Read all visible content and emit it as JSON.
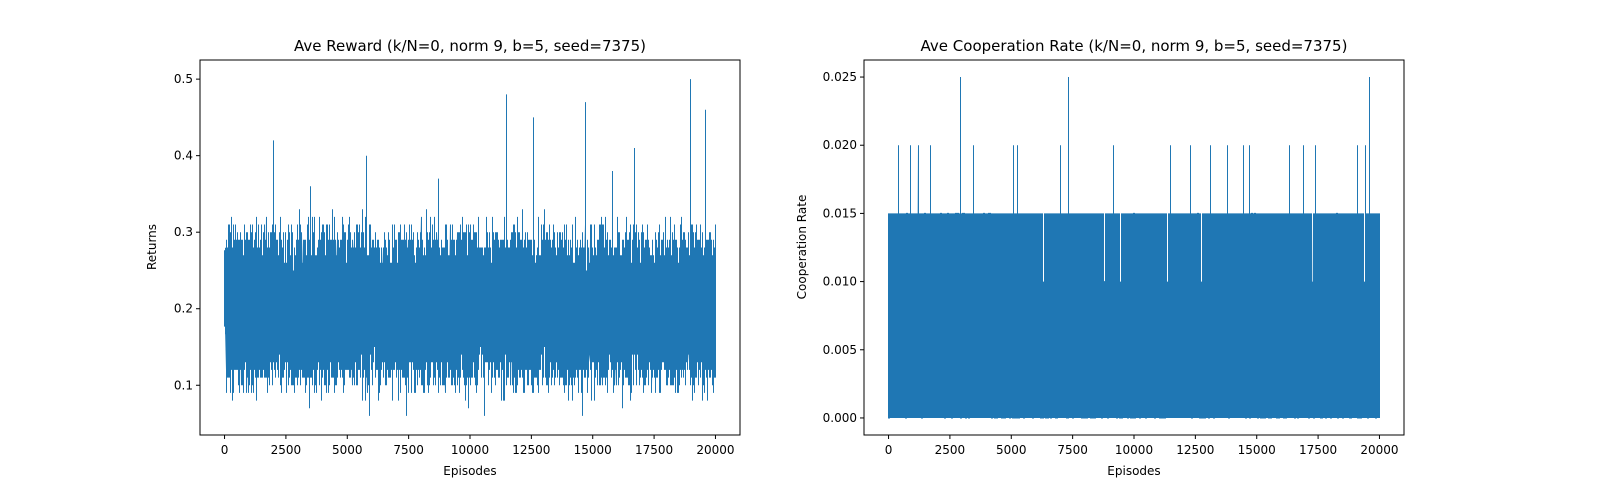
{
  "chart_data": [
    {
      "type": "line",
      "title": "Ave Reward (k/N=0, norm 9, b=5, seed=7375)",
      "xlabel": "Episodes",
      "ylabel": "Returns",
      "xlim": [
        -1000,
        21000
      ],
      "ylim": [
        0.035,
        0.525
      ],
      "xticks": [
        0,
        2500,
        5000,
        7500,
        10000,
        12500,
        15000,
        17500,
        20000
      ],
      "yticks": [
        0.1,
        0.2,
        0.3,
        0.4,
        0.5
      ],
      "ytick_decimals": 1,
      "grid": false,
      "color": "#1f77b4",
      "series": [
        {
          "generator": {
            "n": 20000,
            "seed": 7375,
            "base": 0.2,
            "amp": 0.09,
            "step": 0.01,
            "min": 0.06,
            "max": 0.5
          },
          "spikes": [
            {
              "x": 2000,
              "y": 0.42
            },
            {
              "x": 5800,
              "y": 0.4
            },
            {
              "x": 11500,
              "y": 0.48
            },
            {
              "x": 12600,
              "y": 0.45
            },
            {
              "x": 14700,
              "y": 0.47
            },
            {
              "x": 16700,
              "y": 0.41
            },
            {
              "x": 19000,
              "y": 0.5
            },
            {
              "x": 19600,
              "y": 0.46
            },
            {
              "x": 8700,
              "y": 0.37
            },
            {
              "x": 3500,
              "y": 0.36
            },
            {
              "x": 15800,
              "y": 0.38
            },
            {
              "x": 5900,
              "y": 0.06
            },
            {
              "x": 7400,
              "y": 0.06
            },
            {
              "x": 10600,
              "y": 0.06
            },
            {
              "x": 14600,
              "y": 0.06
            }
          ]
        }
      ]
    },
    {
      "type": "line",
      "title": "Ave Cooperation Rate (k/N=0, norm 9, b=5, seed=7375)",
      "xlabel": "Episodes",
      "ylabel": "Cooperation Rate",
      "xlim": [
        -1000,
        21000
      ],
      "ylim": [
        -0.00125,
        0.02625
      ],
      "xticks": [
        0,
        2500,
        5000,
        7500,
        10000,
        12500,
        15000,
        17500,
        20000
      ],
      "yticks": [
        0.0,
        0.005,
        0.01,
        0.015,
        0.02,
        0.025
      ],
      "ytick_decimals": 3,
      "grid": false,
      "color": "#1f77b4",
      "series": [
        {
          "generator": {
            "n": 20000,
            "seed": 1234,
            "levels": [
              0.0,
              0.005,
              0.01,
              0.015
            ],
            "weights": [
              0.45,
              0.3,
              0.17,
              0.08
            ]
          },
          "spikes": [
            {
              "x": 2950,
              "y": 0.025
            },
            {
              "x": 7350,
              "y": 0.025
            },
            {
              "x": 19600,
              "y": 0.025
            },
            {
              "x": 400,
              "y": 0.02
            },
            {
              "x": 900,
              "y": 0.02
            },
            {
              "x": 1200,
              "y": 0.02
            },
            {
              "x": 1700,
              "y": 0.02
            },
            {
              "x": 3450,
              "y": 0.02
            },
            {
              "x": 5100,
              "y": 0.02
            },
            {
              "x": 5250,
              "y": 0.02
            },
            {
              "x": 7000,
              "y": 0.02
            },
            {
              "x": 9150,
              "y": 0.02
            },
            {
              "x": 11500,
              "y": 0.02
            },
            {
              "x": 12300,
              "y": 0.02
            },
            {
              "x": 13100,
              "y": 0.02
            },
            {
              "x": 13800,
              "y": 0.02
            },
            {
              "x": 14450,
              "y": 0.02
            },
            {
              "x": 14700,
              "y": 0.02
            },
            {
              "x": 16350,
              "y": 0.02
            },
            {
              "x": 16900,
              "y": 0.02
            },
            {
              "x": 17400,
              "y": 0.02
            },
            {
              "x": 19100,
              "y": 0.02
            },
            {
              "x": 19450,
              "y": 0.02
            }
          ]
        }
      ]
    }
  ]
}
